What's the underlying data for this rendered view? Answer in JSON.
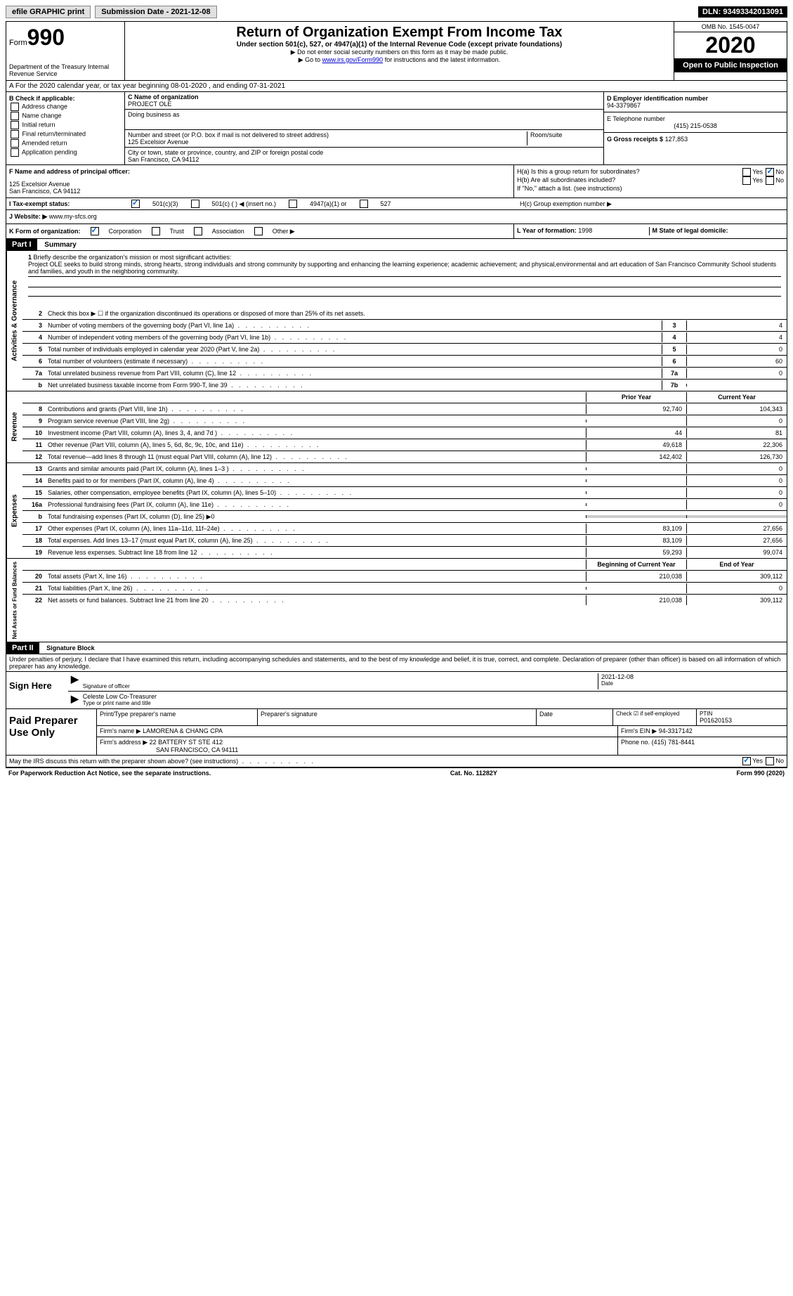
{
  "topbar": {
    "efile": "efile GRAPHIC print",
    "submission": "Submission Date - 2021-12-08",
    "dln": "DLN: 93493342013091"
  },
  "header": {
    "form": "Form",
    "form_num": "990",
    "dept": "Department of the Treasury Internal Revenue Service",
    "title": "Return of Organization Exempt From Income Tax",
    "sub": "Under section 501(c), 527, or 4947(a)(1) of the Internal Revenue Code (except private foundations)",
    "note1": "▶ Do not enter social security numbers on this form as it may be made public.",
    "note2": "▶ Go to www.irs.gov/Form990 for instructions and the latest information.",
    "link": "www.irs.gov/Form990",
    "omb": "OMB No. 1545-0047",
    "year": "2020",
    "inspect": "Open to Public Inspection"
  },
  "row_a": "A For the 2020 calendar year, or tax year beginning 08-01-2020   , and ending 07-31-2021",
  "section_b": {
    "label": "B Check if applicable:",
    "items": [
      "Address change",
      "Name change",
      "Initial return",
      "Final return/terminated",
      "Amended return",
      "Application pending"
    ]
  },
  "section_c": {
    "label_c": "C Name of organization",
    "org": "PROJECT OLE",
    "dba_label": "Doing business as",
    "addr_label": "Number and street (or P.O. box if mail is not delivered to street address)",
    "room_label": "Room/suite",
    "addr": "125 Excelsior Avenue",
    "city_label": "City or town, state or province, country, and ZIP or foreign postal code",
    "city": "San Francisco, CA  94112"
  },
  "section_d": {
    "label_d": "D Employer identification number",
    "ein": "94-3379867",
    "label_e": "E Telephone number",
    "phone": "(415) 215-0538",
    "label_g": "G Gross receipts $",
    "gross": "127,853"
  },
  "section_f": {
    "label": "F Name and address of principal officer:",
    "addr1": "125 Excelsior Avenue",
    "addr2": "San Francisco, CA  94112"
  },
  "section_h": {
    "ha": "H(a)  Is this a group return for subordinates?",
    "hb": "H(b)  Are all subordinates included?",
    "hb_note": "If \"No,\" attach a list. (see instructions)",
    "hc": "H(c)  Group exemption number ▶",
    "yes": "Yes",
    "no": "No"
  },
  "row_i": {
    "label": "I  Tax-exempt status:",
    "opt1": "501(c)(3)",
    "opt2": "501(c) (  ) ◀ (insert no.)",
    "opt3": "4947(a)(1) or",
    "opt4": "527"
  },
  "row_j": {
    "label": "J  Website: ▶",
    "url": "www.my-sfcs.org"
  },
  "row_k": {
    "label": "K Form of organization:",
    "opt1": "Corporation",
    "opt2": "Trust",
    "opt3": "Association",
    "opt4": "Other ▶"
  },
  "row_l": {
    "label": "L Year of formation:",
    "val": "1998"
  },
  "row_m": {
    "label": "M State of legal domicile:",
    "val": ""
  },
  "part1": {
    "header": "Part I",
    "title": "Summary",
    "vlabel1": "Activities & Governance",
    "vlabel2": "Revenue",
    "vlabel3": "Expenses",
    "vlabel4": "Net Assets or Fund Balances",
    "line1_label": "Briefly describe the organization's mission or most significant activities:",
    "line1_text": "Project OLE seeks to build strong minds, strong hearts, strong individuals and strong community by supporting and enhancing the learning experience; academic achievement; and physical,environmental and art education of San Francisco Community School students and families, and youth in the neighboring community.",
    "line2": "Check this box ▶ ☐ if the organization discontinued its operations or disposed of more than 25% of its net assets.",
    "lines_gov": [
      {
        "n": "3",
        "t": "Number of voting members of the governing body (Part VI, line 1a)",
        "b": "3",
        "v": "4"
      },
      {
        "n": "4",
        "t": "Number of independent voting members of the governing body (Part VI, line 1b)",
        "b": "4",
        "v": "4"
      },
      {
        "n": "5",
        "t": "Total number of individuals employed in calendar year 2020 (Part V, line 2a)",
        "b": "5",
        "v": "0"
      },
      {
        "n": "6",
        "t": "Total number of volunteers (estimate if necessary)",
        "b": "6",
        "v": "60"
      },
      {
        "n": "7a",
        "t": "Total unrelated business revenue from Part VIII, column (C), line 12",
        "b": "7a",
        "v": "0"
      },
      {
        "n": "b",
        "t": "Net unrelated business taxable income from Form 990-T, line 39",
        "b": "7b",
        "v": ""
      }
    ],
    "col_prior": "Prior Year",
    "col_current": "Current Year",
    "lines_rev": [
      {
        "n": "8",
        "t": "Contributions and grants (Part VIII, line 1h)",
        "p": "92,740",
        "c": "104,343"
      },
      {
        "n": "9",
        "t": "Program service revenue (Part VIII, line 2g)",
        "p": "",
        "c": "0"
      },
      {
        "n": "10",
        "t": "Investment income (Part VIII, column (A), lines 3, 4, and 7d )",
        "p": "44",
        "c": "81"
      },
      {
        "n": "11",
        "t": "Other revenue (Part VIII, column (A), lines 5, 6d, 8c, 9c, 10c, and 11e)",
        "p": "49,618",
        "c": "22,306"
      },
      {
        "n": "12",
        "t": "Total revenue—add lines 8 through 11 (must equal Part VIII, column (A), line 12)",
        "p": "142,402",
        "c": "126,730"
      }
    ],
    "lines_exp": [
      {
        "n": "13",
        "t": "Grants and similar amounts paid (Part IX, column (A), lines 1–3 )",
        "p": "",
        "c": "0"
      },
      {
        "n": "14",
        "t": "Benefits paid to or for members (Part IX, column (A), line 4)",
        "p": "",
        "c": "0"
      },
      {
        "n": "15",
        "t": "Salaries, other compensation, employee benefits (Part IX, column (A), lines 5–10)",
        "p": "",
        "c": "0"
      },
      {
        "n": "16a",
        "t": "Professional fundraising fees (Part IX, column (A), line 11e)",
        "p": "",
        "c": "0"
      },
      {
        "n": "b",
        "t": "Total fundraising expenses (Part IX, column (D), line 25) ▶0",
        "p": null,
        "c": null
      },
      {
        "n": "17",
        "t": "Other expenses (Part IX, column (A), lines 11a–11d, 11f–24e)",
        "p": "83,109",
        "c": "27,656"
      },
      {
        "n": "18",
        "t": "Total expenses. Add lines 13–17 (must equal Part IX, column (A), line 25)",
        "p": "83,109",
        "c": "27,656"
      },
      {
        "n": "19",
        "t": "Revenue less expenses. Subtract line 18 from line 12",
        "p": "59,293",
        "c": "99,074"
      }
    ],
    "col_begin": "Beginning of Current Year",
    "col_end": "End of Year",
    "lines_net": [
      {
        "n": "20",
        "t": "Total assets (Part X, line 16)",
        "p": "210,038",
        "c": "309,112"
      },
      {
        "n": "21",
        "t": "Total liabilities (Part X, line 26)",
        "p": "",
        "c": "0"
      },
      {
        "n": "22",
        "t": "Net assets or fund balances. Subtract line 21 from line 20",
        "p": "210,038",
        "c": "309,112"
      }
    ]
  },
  "part2": {
    "header": "Part II",
    "title": "Signature Block",
    "perjury": "Under penalties of perjury, I declare that I have examined this return, including accompanying schedules and statements, and to the best of my knowledge and belief, it is true, correct, and complete. Declaration of preparer (other than officer) is based on all information of which preparer has any knowledge.",
    "sign_here": "Sign Here",
    "sig_officer": "Signature of officer",
    "date": "Date",
    "sig_date": "2021-12-08",
    "name_title": "Celeste Low Co-Treasurer",
    "type_name": "Type or print name and title",
    "paid": "Paid Preparer Use Only",
    "prep_name_label": "Print/Type preparer's name",
    "prep_sig_label": "Preparer's signature",
    "prep_date_label": "Date",
    "check_self": "Check ☑ if self-employed",
    "ptin_label": "PTIN",
    "ptin": "P01620153",
    "firm_name_label": "Firm's name    ▶",
    "firm_name": "LAMORENA & CHANG CPA",
    "firm_ein_label": "Firm's EIN ▶",
    "firm_ein": "94-3317142",
    "firm_addr_label": "Firm's address ▶",
    "firm_addr1": "22 BATTERY ST STE 412",
    "firm_addr2": "SAN FRANCISCO, CA  94111",
    "firm_phone_label": "Phone no.",
    "firm_phone": "(415) 781-8441",
    "discuss": "May the IRS discuss this return with the preparer shown above? (see instructions)",
    "yes": "Yes",
    "no": "No"
  },
  "footer": {
    "left": "For Paperwork Reduction Act Notice, see the separate instructions.",
    "center": "Cat. No. 11282Y",
    "right": "Form 990 (2020)"
  }
}
